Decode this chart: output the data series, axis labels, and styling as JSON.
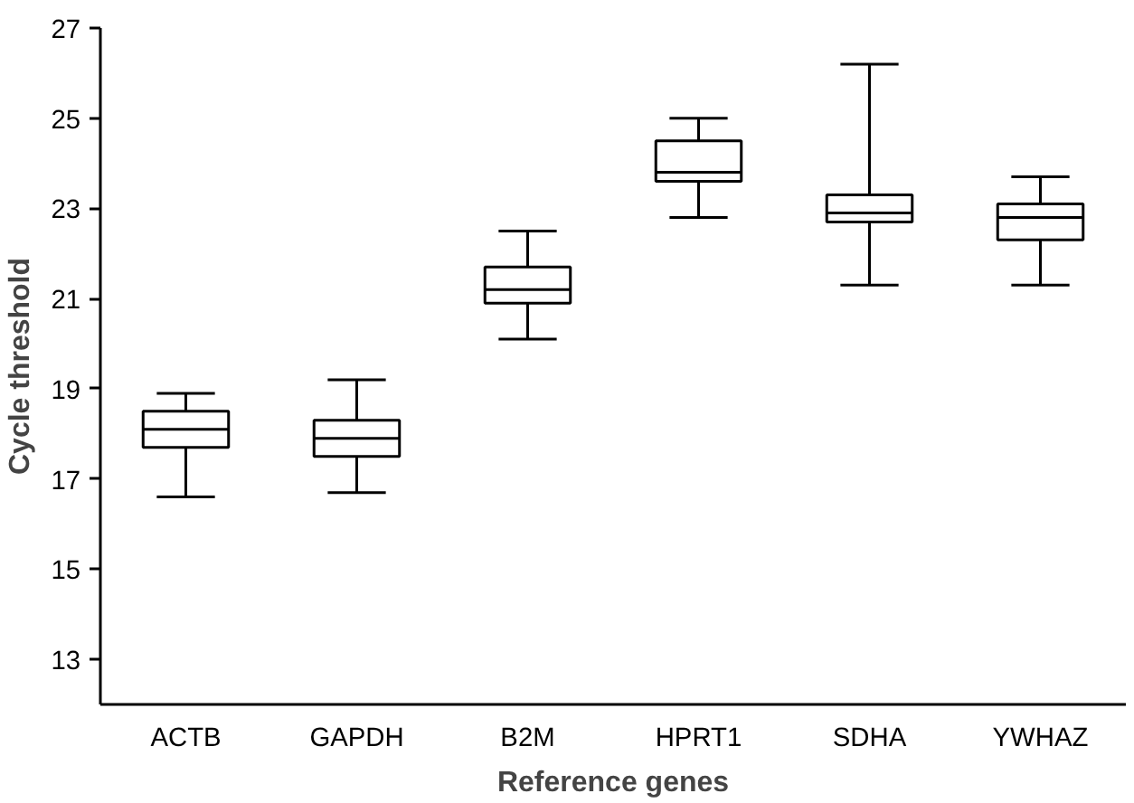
{
  "chart_data": {
    "type": "box",
    "xlabel": "Reference genes",
    "ylabel": "Cycle threshold",
    "categories": [
      "ACTB",
      "GAPDH",
      "B2M",
      "HPRT1",
      "SDHA",
      "YWHAZ"
    ],
    "boxes": [
      {
        "low": 16.6,
        "q1": 17.7,
        "median": 18.1,
        "q3": 18.5,
        "high": 18.9
      },
      {
        "low": 16.7,
        "q1": 17.5,
        "median": 17.9,
        "q3": 18.3,
        "high": 19.2
      },
      {
        "low": 20.1,
        "q1": 20.9,
        "median": 21.2,
        "q3": 21.7,
        "high": 22.5
      },
      {
        "low": 22.8,
        "q1": 23.6,
        "median": 23.8,
        "q3": 24.5,
        "high": 25.0
      },
      {
        "low": 21.3,
        "q1": 22.7,
        "median": 22.9,
        "q3": 23.3,
        "high": 26.2
      },
      {
        "low": 21.3,
        "q1": 22.3,
        "median": 22.8,
        "q3": 23.1,
        "high": 23.7
      }
    ],
    "color": "#ffffff",
    "ylim": [
      12,
      27
    ],
    "yticks": [
      13,
      15,
      17,
      19,
      21,
      23,
      25,
      27
    ],
    "grid": false
  }
}
